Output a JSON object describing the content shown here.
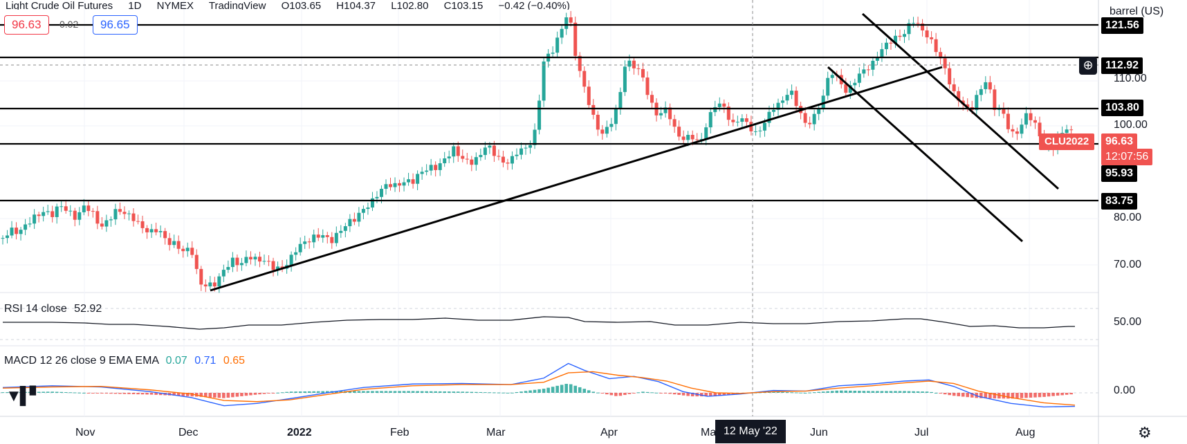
{
  "header": {
    "title_parts": [
      "Light Crude Oil Futures",
      "1D",
      "NYMEX",
      "TradingView"
    ],
    "ohlc": [
      "O103.65",
      "H104.37",
      "L102.80",
      "C103.15",
      "−0.42 (−0.40%)"
    ]
  },
  "trade_boxes": {
    "sell": "96.63",
    "spread": "0.02",
    "buy": "96.65"
  },
  "price_axis": {
    "currency": "barrel (US)",
    "ticks": [
      "110.00",
      "100.00",
      "80.00",
      "70.00"
    ],
    "tags": {
      "level1": "121.56",
      "level2": "112.92",
      "level3": "103.80",
      "last_price": "96.63",
      "countdown": "12:07:56",
      "level4": "95.93",
      "level5": "83.75"
    },
    "symbol": "CLU2022"
  },
  "rsi": {
    "title": "RSI 14 close",
    "value": "52.92",
    "tick": "50.00"
  },
  "macd": {
    "title": "MACD 12 26 close 9 EMA EMA",
    "hist": "0.07",
    "macd": "0.71",
    "signal": "0.65",
    "tick": "0.00"
  },
  "time_axis": {
    "labels": [
      "Nov",
      "Dec",
      "2022",
      "Feb",
      "Mar",
      "Apr",
      "Ma",
      "Jun",
      "Jul",
      "Aug"
    ],
    "crosshair": "12 May '22"
  },
  "colors": {
    "up": "#26a69a",
    "down": "#ef5350",
    "rsi": "#131722",
    "macd": "#2962ff",
    "signal": "#ff6d00",
    "hist_up": "#26a69a",
    "hist_down": "#ef5350"
  },
  "icons": {
    "add": "plus-circle-icon",
    "settings": "gear-icon",
    "logo": "tradingview-logo-icon"
  },
  "chart_data": {
    "type": "candlestick",
    "instrument": "CLU2022",
    "horizontal_levels": [
      121.56,
      112.92,
      103.8,
      95.93,
      83.75
    ],
    "last_price": 96.63,
    "ylim": [
      63,
      129
    ],
    "close_path": [
      [
        0,
        75.8
      ],
      [
        10,
        77.5
      ],
      [
        20,
        77
      ],
      [
        30,
        79
      ],
      [
        40,
        80.5
      ],
      [
        50,
        81.5
      ],
      [
        60,
        80.8
      ],
      [
        70,
        83
      ],
      [
        80,
        81.5
      ],
      [
        90,
        80
      ],
      [
        100,
        83
      ],
      [
        110,
        81
      ],
      [
        120,
        78
      ],
      [
        130,
        80
      ],
      [
        140,
        82
      ],
      [
        150,
        81
      ],
      [
        160,
        80
      ],
      [
        170,
        78
      ],
      [
        180,
        77
      ],
      [
        190,
        77.8
      ],
      [
        200,
        75
      ],
      [
        210,
        74.5
      ],
      [
        220,
        73
      ],
      [
        230,
        73.5
      ],
      [
        240,
        66
      ],
      [
        250,
        65.5
      ],
      [
        260,
        66
      ],
      [
        270,
        69
      ],
      [
        280,
        71
      ],
      [
        290,
        70
      ],
      [
        300,
        72
      ],
      [
        310,
        71
      ],
      [
        320,
        71
      ],
      [
        330,
        69.5
      ],
      [
        340,
        69
      ],
      [
        350,
        71
      ],
      [
        360,
        74
      ],
      [
        370,
        75
      ],
      [
        380,
        76
      ],
      [
        390,
        76.5
      ],
      [
        400,
        75
      ],
      [
        410,
        77
      ],
      [
        420,
        79
      ],
      [
        430,
        80
      ],
      [
        440,
        82
      ],
      [
        450,
        83.5
      ],
      [
        460,
        86
      ],
      [
        470,
        87.5
      ],
      [
        480,
        87
      ],
      [
        490,
        88
      ],
      [
        500,
        88
      ],
      [
        510,
        90
      ],
      [
        520,
        91
      ],
      [
        530,
        91
      ],
      [
        540,
        93
      ],
      [
        550,
        95
      ],
      [
        560,
        93
      ],
      [
        570,
        92
      ],
      [
        580,
        93
      ],
      [
        590,
        96
      ],
      [
        600,
        94
      ],
      [
        610,
        92
      ],
      [
        620,
        92.5
      ],
      [
        630,
        95
      ],
      [
        640,
        95
      ],
      [
        650,
        99
      ],
      [
        660,
        114
      ],
      [
        670,
        116
      ],
      [
        680,
        120
      ],
      [
        690,
        125
      ],
      [
        700,
        114
      ],
      [
        710,
        108
      ],
      [
        720,
        102
      ],
      [
        730,
        98
      ],
      [
        740,
        100
      ],
      [
        750,
        104
      ],
      [
        760,
        114
      ],
      [
        770,
        113
      ],
      [
        780,
        111
      ],
      [
        790,
        105
      ],
      [
        800,
        102
      ],
      [
        810,
        104
      ],
      [
        820,
        99
      ],
      [
        830,
        97
      ],
      [
        840,
        98
      ],
      [
        850,
        96
      ],
      [
        860,
        101
      ],
      [
        870,
        105
      ],
      [
        880,
        104
      ],
      [
        890,
        100
      ],
      [
        900,
        102
      ],
      [
        910,
        100
      ],
      [
        920,
        98
      ],
      [
        930,
        101
      ],
      [
        940,
        104
      ],
      [
        950,
        105
      ],
      [
        960,
        108
      ],
      [
        970,
        104
      ],
      [
        980,
        100
      ],
      [
        990,
        102
      ],
      [
        1000,
        106
      ],
      [
        1010,
        112
      ],
      [
        1020,
        110
      ],
      [
        1030,
        107
      ],
      [
        1040,
        110
      ],
      [
        1050,
        112
      ],
      [
        1060,
        113
      ],
      [
        1070,
        116
      ],
      [
        1080,
        118
      ],
      [
        1090,
        119
      ],
      [
        1100,
        120
      ],
      [
        1110,
        123
      ],
      [
        1120,
        121
      ],
      [
        1130,
        119
      ],
      [
        1140,
        116
      ],
      [
        1150,
        112
      ],
      [
        1160,
        107
      ],
      [
        1170,
        105
      ],
      [
        1180,
        103
      ],
      [
        1190,
        107
      ],
      [
        1200,
        110
      ],
      [
        1210,
        104
      ],
      [
        1220,
        103
      ],
      [
        1230,
        98
      ],
      [
        1240,
        99
      ],
      [
        1250,
        103
      ],
      [
        1260,
        100
      ],
      [
        1270,
        96
      ],
      [
        1280,
        95
      ],
      [
        1290,
        98
      ],
      [
        1300,
        100
      ],
      [
        1308,
        96.6
      ]
    ],
    "rsi_path": [
      [
        0,
        52
      ],
      [
        60,
        52
      ],
      [
        100,
        51
      ],
      [
        130,
        49
      ],
      [
        160,
        49
      ],
      [
        200,
        46
      ],
      [
        240,
        42
      ],
      [
        270,
        44
      ],
      [
        300,
        48
      ],
      [
        340,
        48
      ],
      [
        380,
        52
      ],
      [
        420,
        55
      ],
      [
        460,
        56
      ],
      [
        500,
        56
      ],
      [
        540,
        58
      ],
      [
        580,
        55
      ],
      [
        620,
        55
      ],
      [
        660,
        60
      ],
      [
        690,
        59
      ],
      [
        710,
        53
      ],
      [
        750,
        52
      ],
      [
        790,
        53
      ],
      [
        820,
        48
      ],
      [
        860,
        48
      ],
      [
        900,
        52
      ],
      [
        940,
        50
      ],
      [
        980,
        50
      ],
      [
        1020,
        53
      ],
      [
        1060,
        54
      ],
      [
        1100,
        57
      ],
      [
        1120,
        57
      ],
      [
        1150,
        52
      ],
      [
        1180,
        46
      ],
      [
        1210,
        47
      ],
      [
        1240,
        44
      ],
      [
        1270,
        44
      ],
      [
        1300,
        46
      ],
      [
        1308,
        46
      ]
    ],
    "macd_path": [
      [
        0,
        0.9
      ],
      [
        60,
        1.2
      ],
      [
        120,
        1.0
      ],
      [
        180,
        0.2
      ],
      [
        230,
        -0.8
      ],
      [
        270,
        -2.2
      ],
      [
        310,
        -1.8
      ],
      [
        350,
        -1.0
      ],
      [
        400,
        0.1
      ],
      [
        440,
        0.9
      ],
      [
        500,
        1.5
      ],
      [
        560,
        1.6
      ],
      [
        620,
        1.4
      ],
      [
        660,
        2.5
      ],
      [
        690,
        5.0
      ],
      [
        710,
        3.8
      ],
      [
        740,
        2.4
      ],
      [
        770,
        2.8
      ],
      [
        800,
        1.9
      ],
      [
        830,
        0.2
      ],
      [
        860,
        -0.6
      ],
      [
        900,
        -0.2
      ],
      [
        940,
        0.4
      ],
      [
        980,
        0.3
      ],
      [
        1020,
        1.2
      ],
      [
        1060,
        1.5
      ],
      [
        1100,
        2.0
      ],
      [
        1130,
        2.2
      ],
      [
        1160,
        1.1
      ],
      [
        1190,
        -0.6
      ],
      [
        1230,
        -1.8
      ],
      [
        1270,
        -2.4
      ],
      [
        1308,
        -2.3
      ]
    ],
    "signal_path": [
      [
        0,
        0.8
      ],
      [
        60,
        1.0
      ],
      [
        120,
        1.1
      ],
      [
        180,
        0.5
      ],
      [
        230,
        -0.2
      ],
      [
        270,
        -1.3
      ],
      [
        310,
        -1.5
      ],
      [
        350,
        -1.2
      ],
      [
        400,
        -0.2
      ],
      [
        440,
        0.6
      ],
      [
        500,
        1.2
      ],
      [
        560,
        1.4
      ],
      [
        620,
        1.4
      ],
      [
        660,
        1.8
      ],
      [
        690,
        3.4
      ],
      [
        720,
        3.6
      ],
      [
        750,
        3.0
      ],
      [
        780,
        2.6
      ],
      [
        810,
        2.0
      ],
      [
        840,
        0.8
      ],
      [
        870,
        0.0
      ],
      [
        900,
        -0.1
      ],
      [
        940,
        0.2
      ],
      [
        980,
        0.3
      ],
      [
        1020,
        0.8
      ],
      [
        1060,
        1.2
      ],
      [
        1100,
        1.7
      ],
      [
        1130,
        2.0
      ],
      [
        1160,
        1.6
      ],
      [
        1190,
        0.3
      ],
      [
        1230,
        -0.8
      ],
      [
        1270,
        -1.7
      ],
      [
        1308,
        -2.1
      ]
    ],
    "hist_path": [
      [
        0,
        0.1
      ],
      [
        60,
        0.2
      ],
      [
        120,
        -0.1
      ],
      [
        180,
        -0.3
      ],
      [
        230,
        -0.6
      ],
      [
        270,
        -0.9
      ],
      [
        310,
        -0.3
      ],
      [
        350,
        0.2
      ],
      [
        400,
        0.3
      ],
      [
        440,
        0.3
      ],
      [
        500,
        0.3
      ],
      [
        560,
        0.2
      ],
      [
        620,
        0.0
      ],
      [
        660,
        0.7
      ],
      [
        690,
        1.6
      ],
      [
        720,
        0.2
      ],
      [
        750,
        -0.6
      ],
      [
        780,
        0.2
      ],
      [
        810,
        -0.1
      ],
      [
        840,
        -0.6
      ],
      [
        870,
        -0.6
      ],
      [
        900,
        -0.1
      ],
      [
        940,
        0.2
      ],
      [
        980,
        0.0
      ],
      [
        1020,
        0.4
      ],
      [
        1060,
        0.3
      ],
      [
        1100,
        0.3
      ],
      [
        1130,
        0.2
      ],
      [
        1160,
        -0.5
      ],
      [
        1190,
        -0.9
      ],
      [
        1230,
        -1.0
      ],
      [
        1270,
        -0.7
      ],
      [
        1308,
        -0.2
      ]
    ]
  }
}
